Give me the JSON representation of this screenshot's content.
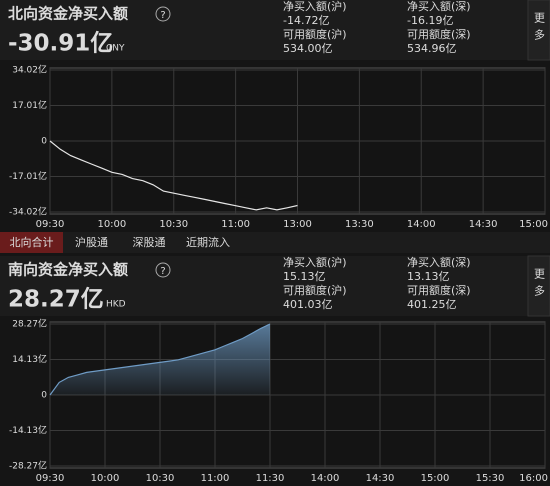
{
  "north": {
    "title": "北向资金净买入额",
    "help_icon": "?",
    "total": "-30.91亿",
    "currency": "CNY",
    "color": "#2fb344",
    "more": "更多",
    "stats": [
      {
        "label": "净买入额(沪)",
        "value": "-14.72亿"
      },
      {
        "label": "净买入额(深)",
        "value": "-16.19亿"
      },
      {
        "label": "可用额度(沪)",
        "value": "534.00亿"
      },
      {
        "label": "可用额度(深)",
        "value": "534.96亿"
      }
    ]
  },
  "tabs": [
    "北向合计",
    "沪股通",
    "深股通",
    "近期流入"
  ],
  "south": {
    "title": "南向资金净买入额",
    "help_icon": "?",
    "total": "28.27亿",
    "currency": "HKD",
    "color": "#e5383b",
    "more": "更多",
    "stats": [
      {
        "label": "净买入额(沪)",
        "value": "15.13亿"
      },
      {
        "label": "净买入额(深)",
        "value": "13.13亿"
      },
      {
        "label": "可用额度(沪)",
        "value": "401.03亿"
      },
      {
        "label": "可用额度(深)",
        "value": "401.25亿"
      }
    ]
  },
  "chart_data": [
    {
      "type": "line",
      "color": "#e6e6e6",
      "x": [
        0,
        5,
        10,
        15,
        20,
        25,
        30,
        35,
        40,
        45,
        50,
        55,
        60,
        65,
        70,
        75,
        80,
        85,
        90,
        95,
        100,
        105,
        110,
        115,
        120
      ],
      "values": [
        0,
        -4,
        -7,
        -9,
        -11,
        -13,
        -15,
        -16,
        -18,
        -19,
        -21,
        -24,
        -25,
        -26,
        -27,
        -28,
        -29,
        -30,
        -31,
        -32,
        -33,
        -32,
        -33,
        -32,
        -30.91
      ],
      "xlim": [
        0,
        240
      ],
      "xticks": [
        {
          "value": 0,
          "label": "09:30"
        },
        {
          "value": 30,
          "label": "10:00"
        },
        {
          "value": 60,
          "label": "10:30"
        },
        {
          "value": 90,
          "label": "11:00"
        },
        {
          "value": 120,
          "label": "13:00"
        },
        {
          "value": 150,
          "label": "13:30"
        },
        {
          "value": 180,
          "label": "14:00"
        },
        {
          "value": 210,
          "label": "14:30"
        },
        {
          "value": 240,
          "label": "15:00"
        }
      ],
      "ylim": [
        -34.02,
        34.02
      ],
      "yticks": [
        {
          "value": 34.02,
          "label": "34.02亿"
        },
        {
          "value": 17.01,
          "label": "17.01亿"
        },
        0,
        {
          "value": -17.01,
          "label": "-17.01亿"
        },
        {
          "value": -34.02,
          "label": "-34.02亿"
        }
      ],
      "grid": true
    },
    {
      "type": "area",
      "color": "#6f9cc6",
      "x": [
        0,
        5,
        10,
        15,
        20,
        25,
        30,
        35,
        40,
        45,
        50,
        55,
        60,
        65,
        70,
        75,
        80,
        85,
        90,
        95,
        100,
        105,
        110,
        115,
        120
      ],
      "values": [
        0,
        5,
        7,
        8,
        9,
        9.5,
        10,
        10.5,
        11,
        11.5,
        12,
        12.5,
        13,
        13.5,
        14,
        15,
        16,
        17,
        18,
        19.5,
        21,
        22.5,
        24.5,
        26.5,
        28.27
      ],
      "xlim": [
        0,
        270
      ],
      "xticks": [
        {
          "value": 0,
          "label": "09:30"
        },
        {
          "value": 30,
          "label": "10:00"
        },
        {
          "value": 60,
          "label": "10:30"
        },
        {
          "value": 90,
          "label": "11:00"
        },
        {
          "value": 120,
          "label": "11:30"
        },
        {
          "value": 150,
          "label": "14:00"
        },
        {
          "value": 180,
          "label": "14:30"
        },
        {
          "value": 210,
          "label": "15:00"
        },
        {
          "value": 240,
          "label": "15:30"
        },
        {
          "value": 270,
          "label": "16:00"
        }
      ],
      "ylim": [
        -28.27,
        28.27
      ],
      "yticks": [
        {
          "value": 28.27,
          "label": "28.27亿"
        },
        {
          "value": 14.13,
          "label": "14.13亿"
        },
        0,
        {
          "value": -14.13,
          "label": "-14.13亿"
        },
        {
          "value": -28.27,
          "label": "-28.27亿"
        }
      ],
      "grid": true
    }
  ]
}
